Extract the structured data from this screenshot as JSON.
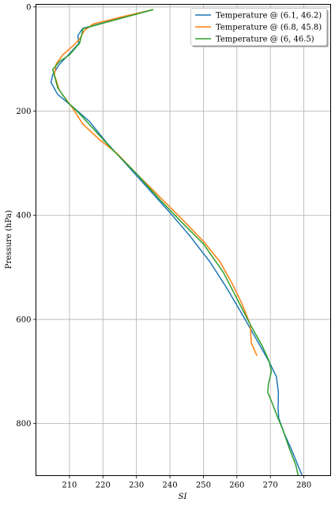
{
  "chart_data": {
    "type": "line",
    "title": "",
    "xlabel": "SI",
    "ylabel": "Pressure (hPa)",
    "xlim": [
      200,
      288
    ],
    "ylim": [
      900,
      -5
    ],
    "y_inverted": true,
    "grid": true,
    "legend_position": "top-right",
    "xticks": [
      210,
      220,
      230,
      240,
      250,
      260,
      270,
      280
    ],
    "yticks": [
      0,
      200,
      400,
      600,
      800
    ],
    "series": [
      {
        "name": "Temperature @ (6.1, 46.2)",
        "color": "#1f77b4",
        "points": [
          [
            235,
            5
          ],
          [
            214,
            41
          ],
          [
            212.5,
            55
          ],
          [
            212.8,
            70
          ],
          [
            210,
            90
          ],
          [
            207,
            110
          ],
          [
            205,
            130
          ],
          [
            204.5,
            145
          ],
          [
            206.5,
            168
          ],
          [
            211,
            192
          ],
          [
            216,
            220
          ],
          [
            221,
            260
          ],
          [
            226,
            295
          ],
          [
            233,
            345
          ],
          [
            240,
            395
          ],
          [
            246,
            440
          ],
          [
            252,
            490
          ],
          [
            257,
            540
          ],
          [
            262,
            595
          ],
          [
            266,
            640
          ],
          [
            269.5,
            680
          ],
          [
            271.8,
            710
          ],
          [
            272.4,
            740
          ],
          [
            272.3,
            770
          ],
          [
            272.5,
            790
          ],
          [
            274.2,
            820
          ],
          [
            276.3,
            850
          ],
          [
            278.2,
            880
          ],
          [
            279.5,
            900
          ]
        ]
      },
      {
        "name": "Temperature @ (6.8, 45.8)",
        "color": "#ff7f0e",
        "points": [
          [
            235,
            5
          ],
          [
            225,
            20
          ],
          [
            217,
            33
          ],
          [
            214.5,
            45
          ],
          [
            213,
            62
          ],
          [
            211,
            75
          ],
          [
            208,
            92
          ],
          [
            206,
            110
          ],
          [
            205.5,
            130
          ],
          [
            207,
            160
          ],
          [
            211,
            195
          ],
          [
            214,
            225
          ],
          [
            219,
            255
          ],
          [
            224,
            280
          ],
          [
            230,
            320
          ],
          [
            237,
            365
          ],
          [
            244,
            410
          ],
          [
            250,
            450
          ],
          [
            255,
            490
          ],
          [
            258.5,
            530
          ],
          [
            261.5,
            570
          ],
          [
            264,
            610
          ],
          [
            264.3,
            645
          ],
          [
            266,
            670
          ]
        ]
      },
      {
        "name": "Temperature @ (6, 46.5)",
        "color": "#2ca02c",
        "points": [
          [
            235,
            5
          ],
          [
            219,
            33
          ],
          [
            214,
            42
          ],
          [
            213.8,
            50
          ],
          [
            213,
            70
          ],
          [
            210,
            92
          ],
          [
            207,
            105
          ],
          [
            205,
            120
          ],
          [
            206.5,
            155
          ],
          [
            209.5,
            183
          ],
          [
            213,
            205
          ],
          [
            218,
            240
          ],
          [
            223,
            275
          ],
          [
            230,
            320
          ],
          [
            237,
            370
          ],
          [
            243,
            410
          ],
          [
            250,
            455
          ],
          [
            256,
            510
          ],
          [
            260,
            560
          ],
          [
            264,
            610
          ],
          [
            267.5,
            650
          ],
          [
            269.6,
            680
          ],
          [
            270.3,
            700
          ],
          [
            269.4,
            725
          ],
          [
            269.2,
            740
          ],
          [
            270.5,
            760
          ],
          [
            272.3,
            790
          ],
          [
            273.6,
            810
          ],
          [
            275.8,
            850
          ],
          [
            277.6,
            880
          ],
          [
            278.3,
            900
          ]
        ]
      }
    ]
  }
}
